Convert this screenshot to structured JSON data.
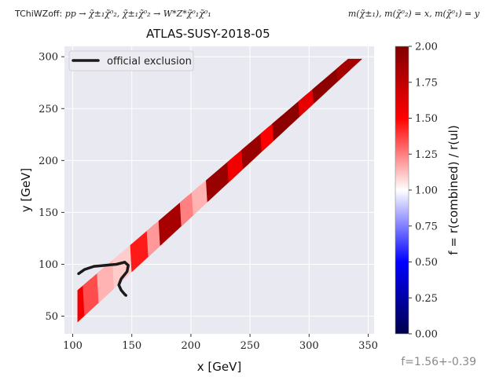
{
  "header": {
    "model": "TChiWZoff:",
    "process": "pp → χ̃±₁χ̃⁰₂, χ̃±₁χ̃⁰₂ → W*Z*χ̃⁰₁χ̃⁰₁",
    "mass_relation": "m(χ̃±₁), m(χ̃⁰₂) = x, m(χ̃⁰₁) = y"
  },
  "footnote": "f=1.56+-0.39",
  "chart_data": {
    "type": "heatmap",
    "title": "ATLAS-SUSY-2018-05",
    "xlabel": "x [GeV]",
    "ylabel": "y [GeV]",
    "xlim": [
      93,
      355
    ],
    "ylim": [
      33,
      310
    ],
    "xticks": [
      100,
      150,
      200,
      250,
      300,
      350
    ],
    "yticks": [
      50,
      100,
      150,
      200,
      250,
      300
    ],
    "grid": true,
    "background": "#e9e9f1",
    "legend": {
      "position": "top-left",
      "entries": [
        {
          "label": "official exclusion",
          "color": "#1a1a1a"
        }
      ]
    },
    "colorbar": {
      "label": "f = r(combined) / r(ul)",
      "range": [
        0.0,
        2.0
      ],
      "ticks": [
        "0.00",
        "0.25",
        "0.50",
        "0.75",
        "1.00",
        "1.25",
        "1.50",
        "1.75",
        "2.00"
      ],
      "colormap": "seismic"
    },
    "band": {
      "lower_edge": [
        [
          104,
          44
        ],
        [
          345,
          298
        ]
      ],
      "upper_edge": [
        [
          104,
          75
        ],
        [
          333,
          298
        ]
      ]
    },
    "band_segments": [
      {
        "x": [
          104,
          118
        ],
        "f": 1.55
      },
      {
        "x": [
          118,
          130
        ],
        "f": 1.35
      },
      {
        "x": [
          130,
          143
        ],
        "f": 1.15
      },
      {
        "x": [
          143,
          158
        ],
        "f": 1.1
      },
      {
        "x": [
          158,
          172
        ],
        "f": 1.45
      },
      {
        "x": [
          172,
          182
        ],
        "f": 1.2
      },
      {
        "x": [
          182,
          200
        ],
        "f": 1.85
      },
      {
        "x": [
          200,
          210
        ],
        "f": 1.25
      },
      {
        "x": [
          210,
          222
        ],
        "f": 1.15
      },
      {
        "x": [
          222,
          240
        ],
        "f": 1.9
      },
      {
        "x": [
          240,
          252
        ],
        "f": 1.55
      },
      {
        "x": [
          252,
          268
        ],
        "f": 1.9
      },
      {
        "x": [
          268,
          278
        ],
        "f": 1.5
      },
      {
        "x": [
          278,
          300
        ],
        "f": 1.95
      },
      {
        "x": [
          300,
          312
        ],
        "f": 1.6
      },
      {
        "x": [
          312,
          332
        ],
        "f": 1.95
      },
      {
        "x": [
          332,
          345
        ],
        "f": 1.85
      }
    ],
    "series": [
      {
        "name": "official exclusion",
        "x": [
          105,
          110,
          118,
          128,
          137,
          144,
          147,
          146,
          141,
          139,
          141,
          144,
          145
        ],
        "y": [
          91,
          95,
          98,
          99,
          100,
          102,
          99,
          93,
          86,
          80,
          75,
          71,
          70
        ]
      }
    ]
  }
}
